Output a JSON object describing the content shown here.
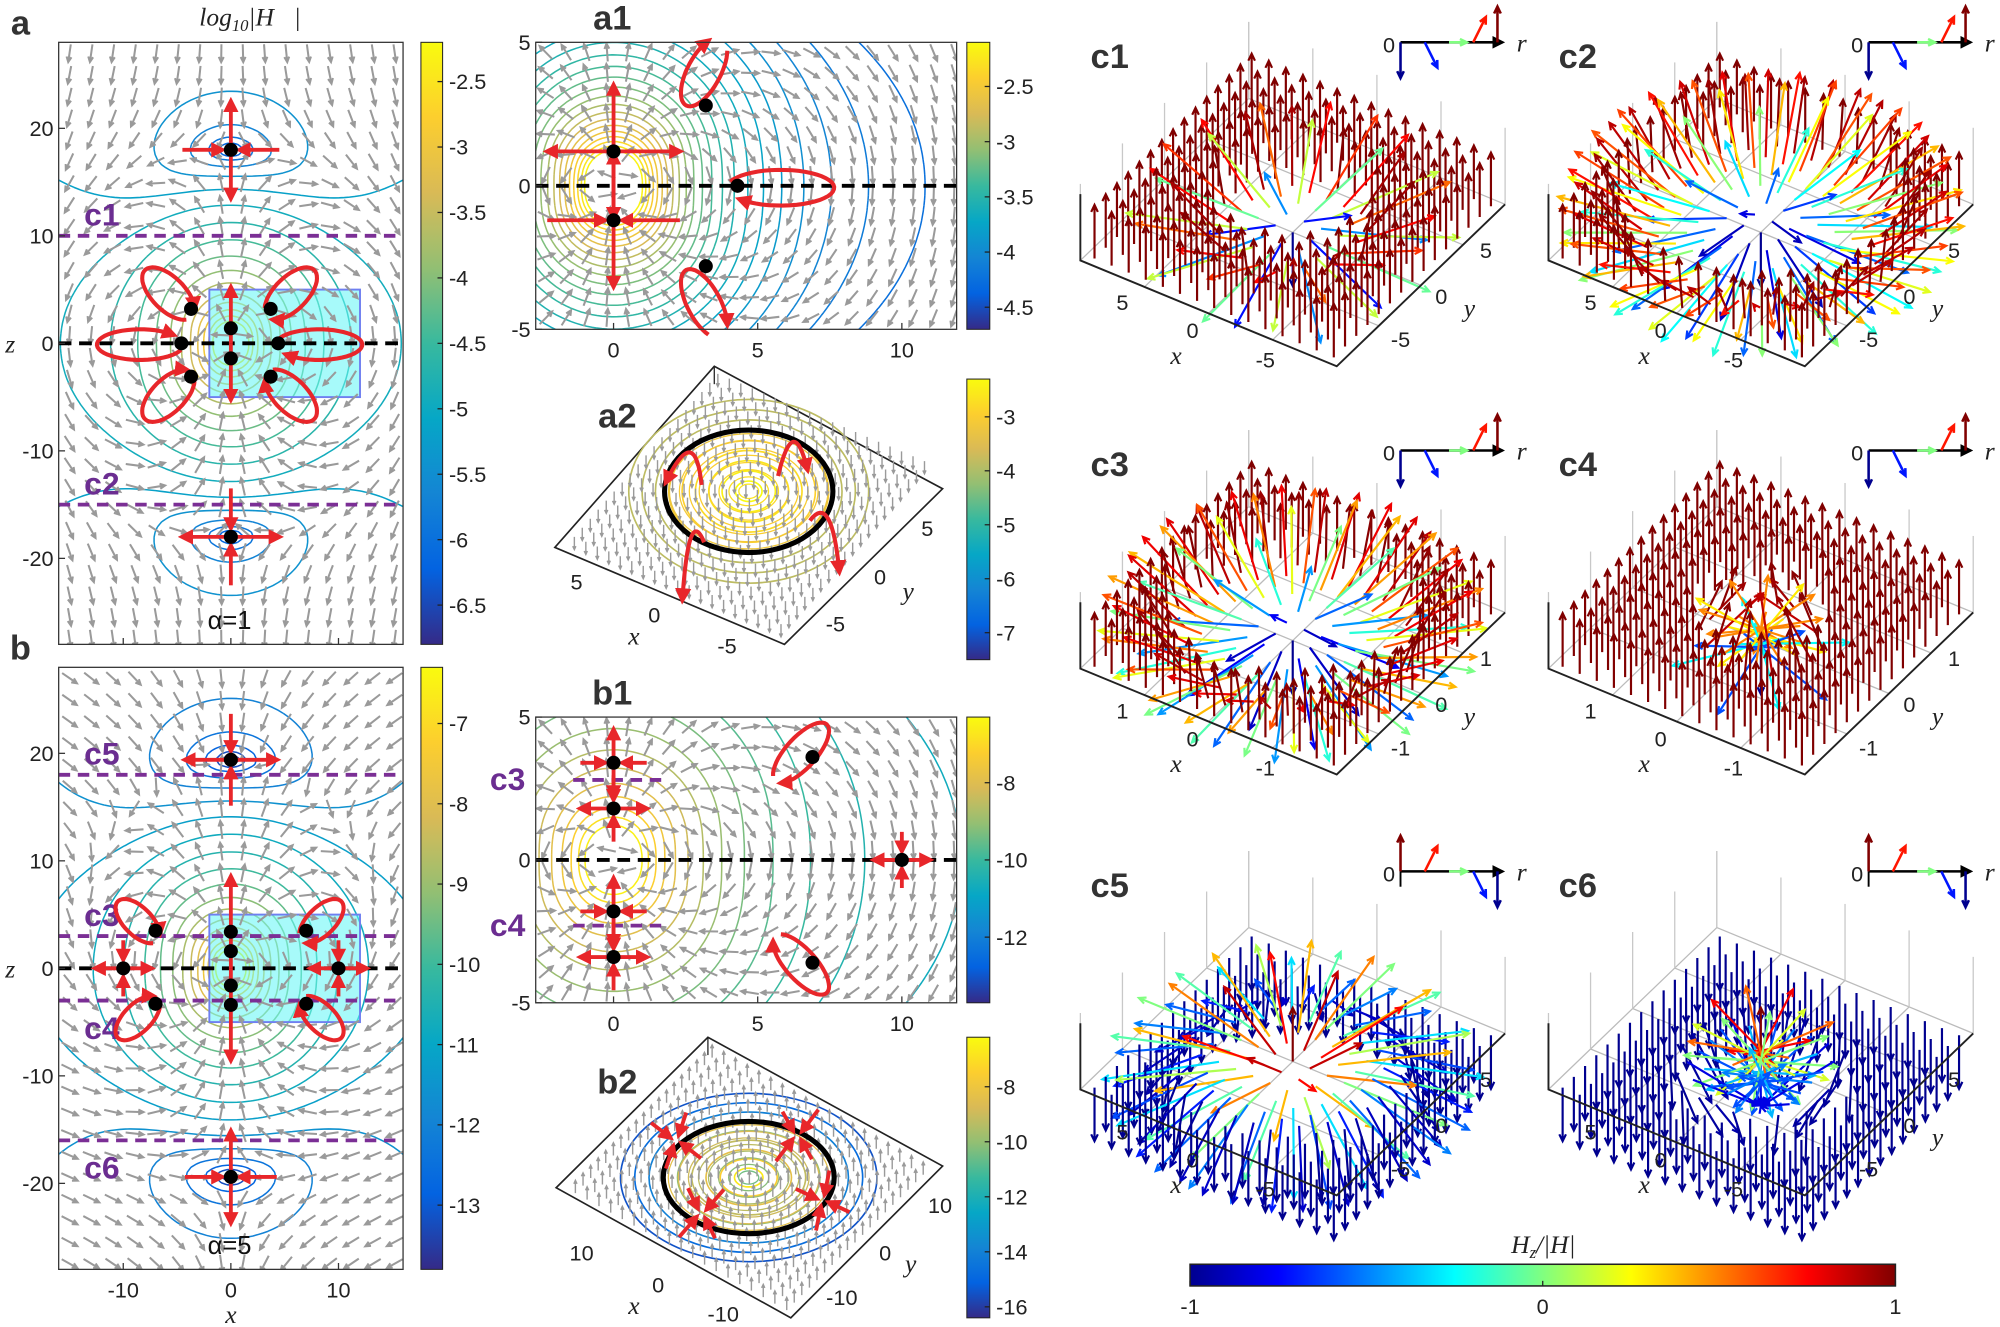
{
  "colormaps": {
    "parula": [
      "#352a87",
      "#0363e1",
      "#1485d4",
      "#06a7c6",
      "#38b99e",
      "#92bf73",
      "#d9ba56",
      "#fcce2e",
      "#f9fb0e"
    ],
    "jet": [
      "#00008f",
      "#0000ff",
      "#0080ff",
      "#00ffff",
      "#80ff80",
      "#ffff00",
      "#ff8000",
      "#ff0000",
      "#800000"
    ],
    "annotation_red": "#e8262a",
    "cut_purple": "#7b2f95",
    "core_cyan": "#5ff5f5"
  },
  "chart_data": [
    {
      "id": "a",
      "label": "a",
      "type": "quiver+contour",
      "title": {
        "base": "log",
        "sub": "10",
        "rest": "|H⃗|"
      },
      "xlabel": "",
      "ylabel": "z",
      "xlim": [
        -16,
        16
      ],
      "ylim": [
        -28,
        28
      ],
      "xticks": [
        -10,
        0,
        10
      ],
      "xticklabels_shown": false,
      "yticks": [
        20,
        10,
        0,
        -10,
        -20
      ],
      "colorbar": {
        "colormap": "parula",
        "range": [
          -6.8,
          -2.2
        ],
        "ticks": [
          -2.5,
          -3,
          -3.5,
          -4,
          -4.5,
          -5,
          -5.5,
          -6,
          -6.5
        ]
      },
      "annotation": "α=1",
      "core_region": {
        "x": [
          -2,
          12
        ],
        "z": [
          -5,
          5
        ]
      },
      "cuts": [
        {
          "label": "c1",
          "z": 10
        },
        {
          "label": "c2",
          "z": -15
        }
      ],
      "null_points": [
        [
          0,
          18
        ],
        [
          0,
          -18
        ],
        [
          -3.7,
          3.2
        ],
        [
          3.7,
          3.2
        ],
        [
          -4.6,
          0
        ],
        [
          4.4,
          0
        ],
        [
          0,
          1.4
        ],
        [
          0,
          -1.4
        ],
        [
          -3.7,
          -3.1
        ],
        [
          3.7,
          -3.1
        ]
      ]
    },
    {
      "id": "b",
      "label": "b",
      "type": "quiver+contour",
      "xlabel": "x",
      "ylabel": "z",
      "xlim": [
        -16,
        16
      ],
      "ylim": [
        -28,
        28
      ],
      "xticks": [
        -10,
        0,
        10
      ],
      "yticks": [
        20,
        10,
        0,
        -10,
        -20
      ],
      "colorbar": {
        "colormap": "parula",
        "range": [
          -13.8,
          -6.3
        ],
        "ticks": [
          -7,
          -8,
          -9,
          -10,
          -11,
          -12,
          -13
        ]
      },
      "annotation": "α=5",
      "core_region": {
        "x": [
          -2,
          12
        ],
        "z": [
          -5,
          5
        ]
      },
      "cuts": [
        {
          "label": "c5",
          "z": 18
        },
        {
          "label": "c3",
          "z": 3
        },
        {
          "label": "c4",
          "z": -3
        },
        {
          "label": "c6",
          "z": -16
        }
      ],
      "null_points": [
        [
          0,
          19.4
        ],
        [
          0,
          -19.4
        ],
        [
          -7,
          3.5
        ],
        [
          7,
          3.5
        ],
        [
          -10,
          0
        ],
        [
          10,
          0
        ],
        [
          0,
          3.4
        ],
        [
          0,
          1.6
        ],
        [
          0,
          -1.6
        ],
        [
          0,
          -3.4
        ],
        [
          -7,
          -3.3
        ],
        [
          7,
          -3.3
        ]
      ]
    },
    {
      "id": "a1",
      "label": "a1",
      "type": "quiver+contour",
      "xlabel": "",
      "ylabel": "",
      "xlim": [
        -2.7,
        11.9
      ],
      "ylim": [
        -5,
        5
      ],
      "xticks": [
        0,
        5,
        10
      ],
      "yticks": [
        5,
        0,
        -5
      ],
      "colorbar": {
        "colormap": "parula",
        "range": [
          -4.7,
          -2.1
        ],
        "ticks": [
          -2.5,
          -3,
          -3.5,
          -4,
          -4.5
        ]
      },
      "cuts": [],
      "null_points": [
        [
          0,
          1.2
        ],
        [
          0,
          -1.2
        ],
        [
          3.2,
          2.8
        ],
        [
          3.2,
          -2.8
        ],
        [
          4.3,
          0
        ]
      ]
    },
    {
      "id": "b1",
      "label": "b1",
      "type": "quiver+contour",
      "xlabel": "",
      "ylabel": "",
      "xlim": [
        -2.7,
        11.9
      ],
      "ylim": [
        -5,
        5
      ],
      "xticks": [
        0,
        5,
        10
      ],
      "yticks": [
        5,
        0,
        -5
      ],
      "colorbar": {
        "colormap": "parula",
        "range": [
          -13.7,
          -6.3
        ],
        "ticks": [
          -8,
          -10,
          -12
        ]
      },
      "cuts": [
        {
          "label": "c3",
          "z": 2.8
        },
        {
          "label": "c4",
          "z": -2.3
        }
      ],
      "null_points": [
        [
          0,
          3.4
        ],
        [
          0,
          1.8
        ],
        [
          0,
          -1.8
        ],
        [
          0,
          -3.4
        ],
        [
          6.9,
          3.6
        ],
        [
          6.9,
          -3.6
        ],
        [
          10,
          0
        ]
      ]
    },
    {
      "id": "a2",
      "label": "a2",
      "type": "quiver3d+contour",
      "xlabel": "x",
      "ylabel": "y",
      "xticks": [
        5,
        0,
        -5
      ],
      "yticks": [
        5,
        0,
        -5
      ],
      "colorbar": {
        "colormap": "parula",
        "range": [
          -7.5,
          -2.3
        ],
        "ticks": [
          -3,
          -4,
          -5,
          -6,
          -7
        ]
      }
    },
    {
      "id": "b2",
      "label": "b2",
      "type": "quiver3d+contour",
      "xlabel": "x",
      "ylabel": "y",
      "xticks": [
        10,
        0,
        -10
      ],
      "yticks": [
        10,
        0,
        -10
      ],
      "colorbar": {
        "colormap": "parula",
        "range": [
          -16.4,
          -6.2
        ],
        "ticks": [
          -8,
          -10,
          -12,
          -14,
          -16
        ]
      }
    },
    {
      "id": "c1",
      "label": "c1",
      "type": "quiver3d",
      "xlabel": "x",
      "ylabel": "y",
      "xticks": [
        5,
        0,
        -5
      ],
      "yticks": [
        -5,
        0,
        5
      ],
      "center_hz": -1,
      "inset": {
        "origin": "0",
        "axis": "r"
      }
    },
    {
      "id": "c2",
      "label": "c2",
      "type": "quiver3d",
      "xlabel": "x",
      "ylabel": "y",
      "xticks": [
        5,
        0,
        -5
      ],
      "yticks": [
        -5,
        0,
        5
      ],
      "center_hz": -1,
      "inset": {
        "origin": "0",
        "axis": "r"
      }
    },
    {
      "id": "c3",
      "label": "c3",
      "type": "quiver3d",
      "xlabel": "x",
      "ylabel": "y",
      "xticks": [
        1,
        0,
        -1
      ],
      "yticks": [
        -1,
        0,
        1
      ],
      "center_hz": -1,
      "inset": {
        "origin": "0",
        "axis": "r"
      }
    },
    {
      "id": "c4",
      "label": "c4",
      "type": "quiver3d",
      "xlabel": "x",
      "ylabel": "y",
      "xticks": [
        1,
        0,
        -1
      ],
      "yticks": [
        -1,
        0,
        1
      ],
      "center_hz": -1,
      "inset": {
        "origin": "0",
        "axis": "r"
      }
    },
    {
      "id": "c5",
      "label": "c5",
      "type": "quiver3d",
      "xlabel": "x",
      "ylabel": "",
      "xticks": [
        5,
        0,
        -5
      ],
      "yticks": [
        -5,
        0,
        5
      ],
      "center_hz": 1,
      "inset": {
        "origin": "0",
        "axis": "r"
      }
    },
    {
      "id": "c6",
      "label": "c6",
      "type": "quiver3d",
      "xlabel": "x",
      "ylabel": "y",
      "xticks": [
        5,
        0,
        -5
      ],
      "yticks": [
        -5,
        0,
        5
      ],
      "center_hz": 1,
      "inset": {
        "origin": "0",
        "axis": "r"
      }
    },
    {
      "id": "hz_colorbar",
      "type": "colorbar",
      "title": {
        "base": "H",
        "sub": "z",
        "rest": "/|H|"
      },
      "colormap": "jet",
      "range": [
        -1,
        1
      ],
      "ticks": [
        -1,
        0,
        1
      ]
    }
  ]
}
